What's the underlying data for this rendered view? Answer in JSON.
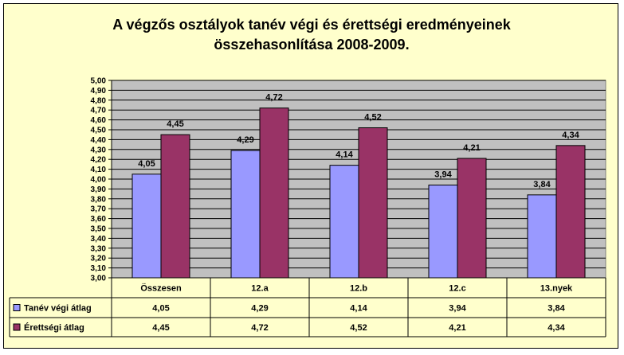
{
  "chart_data": {
    "type": "bar",
    "title_lines": [
      "A végzős osztályok tanév végi és érettségi eredményeinek",
      "összehasonlítása 2008-2009."
    ],
    "categories": [
      "Összesen",
      "12.a",
      "12.b",
      "12.c",
      "13.nyek"
    ],
    "series": [
      {
        "name": "Tanév végi átlag",
        "values": [
          4.05,
          4.29,
          4.14,
          3.94,
          3.84
        ],
        "labels": [
          "4,05",
          "4,29",
          "4,14",
          "3,94",
          "3,84"
        ],
        "color": "#9999ff"
      },
      {
        "name": "Érettségi átlag",
        "values": [
          4.45,
          4.72,
          4.52,
          4.21,
          4.34
        ],
        "labels": [
          "4,45",
          "4,72",
          "4,52",
          "4,21",
          "4,34"
        ],
        "color": "#993366"
      }
    ],
    "ylim": [
      3.0,
      5.0
    ],
    "ytick_step": 0.1,
    "ytick_labels": [
      "3,00",
      "3,10",
      "3,20",
      "3,30",
      "3,40",
      "3,50",
      "3,60",
      "3,70",
      "3,80",
      "3,90",
      "4,00",
      "4,10",
      "4,20",
      "4,30",
      "4,40",
      "4,50",
      "4,60",
      "4,70",
      "4,80",
      "4,90",
      "5,00"
    ],
    "plot_background": "#c0c0c0",
    "chart_background": "#ffffcc",
    "grid": true,
    "data_table": true,
    "legend": "in data table"
  }
}
